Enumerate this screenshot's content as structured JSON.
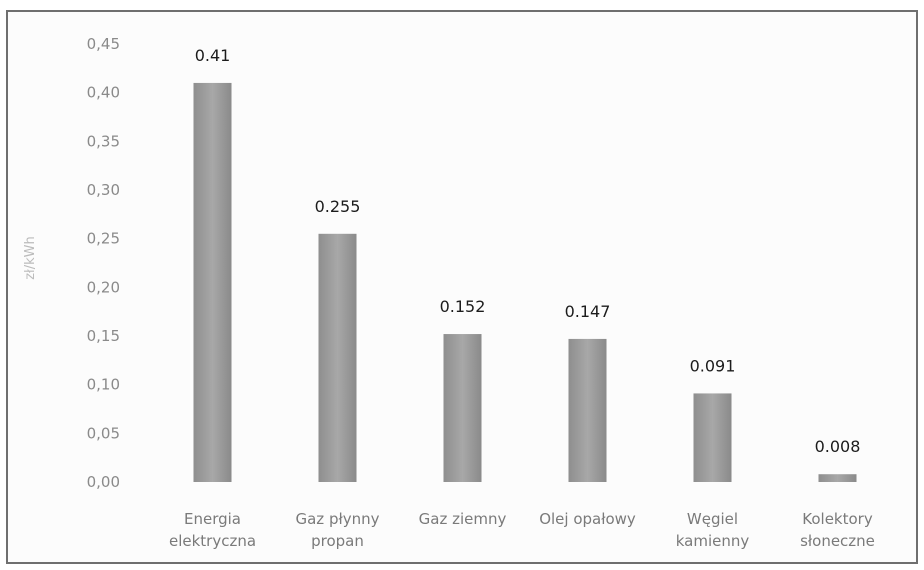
{
  "chart_data": {
    "type": "bar",
    "categories": [
      [
        "Energia",
        "elektryczna"
      ],
      [
        "Gaz płynny",
        "propan"
      ],
      [
        "Gaz ziemny"
      ],
      [
        "Olej opałowy"
      ],
      [
        "Węgiel",
        "kamienny"
      ],
      [
        "Kolektory",
        "słoneczne"
      ]
    ],
    "values": [
      0.41,
      0.255,
      0.152,
      0.147,
      0.091,
      0.008
    ],
    "data_labels": [
      "0.41",
      "0.255",
      "0.152",
      "0.147",
      "0.091",
      "0.008"
    ],
    "yticks": [
      "0,00",
      "0,05",
      "0,10",
      "0,15",
      "0,20",
      "0,25",
      "0,30",
      "0,35",
      "0,40",
      "0,45"
    ],
    "ylim": [
      0,
      0.45
    ],
    "ylabel": "zł/kWh",
    "grid": false,
    "colors": {
      "bar": "#9a9a9a",
      "bar_dark": "#7c7c7c",
      "frame": "#6f6f6f"
    }
  }
}
